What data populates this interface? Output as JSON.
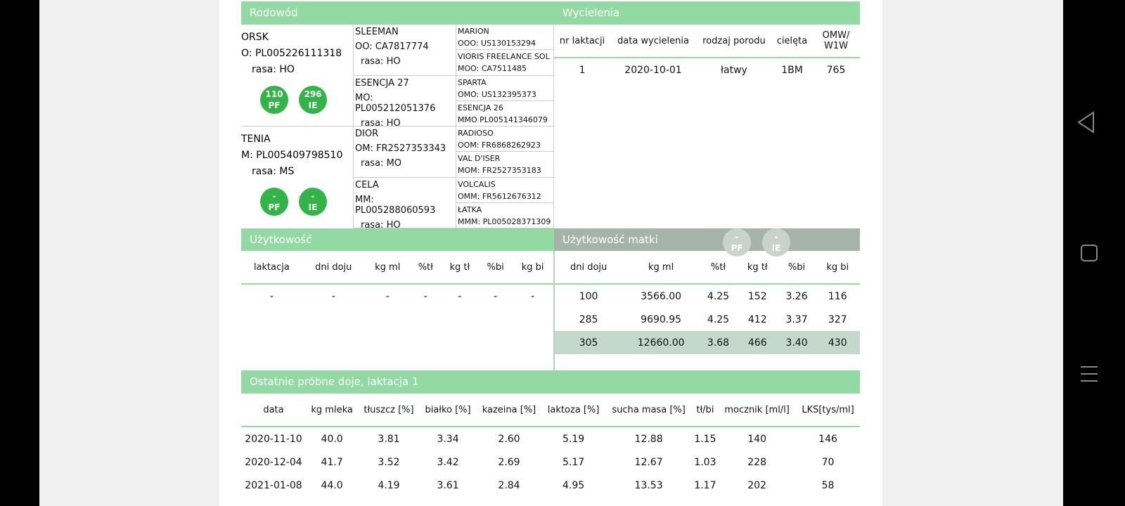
{
  "pedigree": {
    "title": "Rodowód",
    "parents": [
      {
        "name": "ORSK",
        "id": "O: PL005226111318",
        "breed": "rasa: HO",
        "badges": [
          {
            "value": "110",
            "label": "PF"
          },
          {
            "value": "296",
            "label": "IE"
          }
        ]
      },
      {
        "name": "TENIA",
        "id": "M: PL005409798510",
        "breed": "rasa: MS",
        "badges": [
          {
            "value": "-",
            "label": "PF"
          },
          {
            "value": "-",
            "label": "IE"
          }
        ]
      }
    ],
    "grandparents": [
      {
        "name": "SLEEMAN",
        "id": "OO: CA7817774",
        "breed": "rasa: HO"
      },
      {
        "name": "ESENCJA 27",
        "id": "MO: PL005212051376",
        "breed": "rasa: HO"
      },
      {
        "name": "DIOR",
        "id": "OM: FR2527353343",
        "breed": "rasa: MO"
      },
      {
        "name": "CELA",
        "id": "MM: PL005288060593",
        "breed": "rasa: HO"
      }
    ],
    "great_grandparents": [
      {
        "name": "MARION",
        "id": "OOO: US130153294"
      },
      {
        "name": "VIORIS FREELANCE SOL",
        "id": "MOO: CA7511485"
      },
      {
        "name": "SPARTA",
        "id": "OMO: US132395373"
      },
      {
        "name": "ESENCJA 26",
        "id": "MMO PL005141346079"
      },
      {
        "name": "RADIOSO",
        "id": "OOM: FR6868262923"
      },
      {
        "name": "VAL D'ISER",
        "id": "MOM: FR2527353183"
      },
      {
        "name": "VOLCALIS",
        "id": "OMM: FR5612676312"
      },
      {
        "name": "ŁATKA",
        "id": "MMM: PL005028371309"
      }
    ]
  },
  "calvings": {
    "title": "Wycielenia",
    "headers": [
      "nr laktacji",
      "data wycielenia",
      "rodzaj porodu",
      "cielęta",
      "OMW/ W1W"
    ],
    "rows": [
      [
        "1",
        "2020-10-01",
        "łatwy",
        "1BM",
        "765"
      ]
    ]
  },
  "performance": {
    "title": "Użytkowość",
    "headers": [
      "laktacja",
      "dni doju",
      "kg ml",
      "%tł",
      "kg tł",
      "%bi",
      "kg bi"
    ],
    "rows": [
      [
        "-",
        "-",
        "-",
        "-",
        "-",
        "-",
        "-"
      ]
    ]
  },
  "dam_performance": {
    "title": "Użytkowość matki",
    "badges": [
      {
        "value": "-",
        "label": "PF"
      },
      {
        "value": "-",
        "label": "IE"
      }
    ],
    "headers": [
      "dni doju",
      "kg ml",
      "%tł",
      "kg tł",
      "%bi",
      "kg bi"
    ],
    "rows": [
      [
        "100",
        "3566.00",
        "4.25",
        "152",
        "3.26",
        "116"
      ],
      [
        "285",
        "9690.95",
        "4.25",
        "412",
        "3.37",
        "327"
      ],
      [
        "305",
        "12660.00",
        "3.68",
        "466",
        "3.40",
        "430"
      ]
    ]
  },
  "test_milkings": {
    "title": "Ostatnie próbne doje, laktacja 1",
    "headers": [
      "data",
      "kg mleka",
      "tłuszcz [%]",
      "białko [%]",
      "kazeina [%]",
      "laktoza [%]",
      "sucha masa [%]",
      "tł/bi",
      "mocznik [ml/l]",
      "LKS[tys/ml]"
    ],
    "rows": [
      [
        "2020-11-10",
        "40.0",
        "3.81",
        "3.34",
        "2.60",
        "5.19",
        "12.88",
        "1.15",
        "140",
        "146"
      ],
      [
        "2020-12-04",
        "41.7",
        "3.52",
        "3.42",
        "2.69",
        "5.17",
        "12.67",
        "1.03",
        "228",
        "70"
      ],
      [
        "2021-01-08",
        "44.0",
        "4.19",
        "3.61",
        "2.84",
        "4.95",
        "13.53",
        "1.17",
        "202",
        "58"
      ]
    ]
  }
}
